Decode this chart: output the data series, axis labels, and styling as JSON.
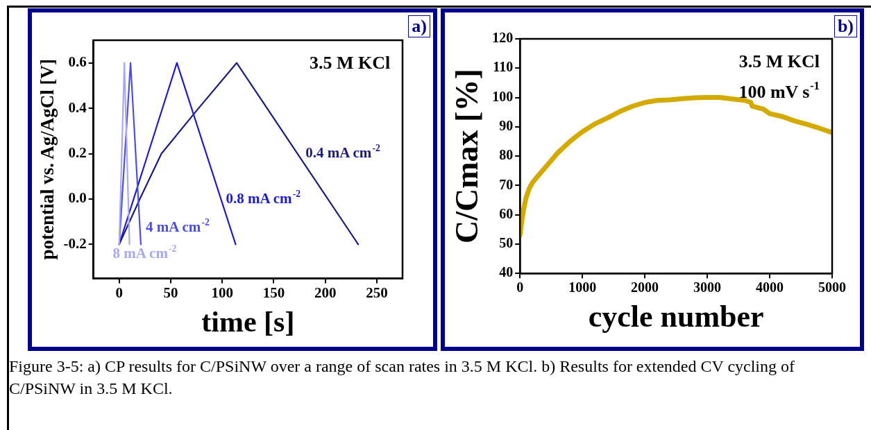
{
  "chart_data": [
    {
      "type": "line",
      "xlabel": "time [s]",
      "ylabel": "potential vs. Ag/AgCl [V]",
      "xlim": [
        -25,
        275
      ],
      "xticks": [
        0,
        50,
        100,
        150,
        200,
        250
      ],
      "ylim": [
        -0.35,
        0.7
      ],
      "yticks": [
        -0.2,
        {
          "value": 0,
          "label": "0.0"
        },
        0.2,
        0.4,
        0.6
      ],
      "grid": false,
      "legend": false,
      "marker": "none",
      "line_style": "solid",
      "annotations": [
        "a)",
        "3.5 M KCl",
        "Figure 3-5: a) CP results for C/PSiNW over a range of scan rates in 3.5 M KCl. b) Results for extended CV cycling of C/PSiNW in 3.5 M KCl."
      ],
      "series": [
        {
          "name": "8 mA cm$^{-2}$",
          "color": "#a8a8f0",
          "x": [
            0,
            5,
            10
          ],
          "values": [
            -0.2,
            0.6,
            -0.2
          ]
        },
        {
          "name": "4 mA cm$^{-2}$",
          "color": "#4c4ce6",
          "x": [
            0,
            11,
            21
          ],
          "values": [
            -0.2,
            0.6,
            -0.2
          ]
        },
        {
          "name": "0.8 mA cm$^{-2}$",
          "color": "#1c1ccc",
          "x": [
            0,
            28,
            56,
            113
          ],
          "values": [
            -0.2,
            0.2,
            0.6,
            -0.2
          ]
        },
        {
          "name": "0.4 mA cm$^{-2}$",
          "color": "#1a1a80",
          "x": [
            0,
            20,
            41,
            77,
            114,
            232
          ],
          "values": [
            -0.2,
            0.0,
            0.2,
            0.4,
            0.6,
            -0.2
          ]
        }
      ]
    },
    {
      "type": "line",
      "xlabel": "cycle number",
      "ylabel": "C/Cmax [%]",
      "xlim": [
        0,
        5000
      ],
      "xticks": [
        0,
        1000,
        2000,
        3000,
        4000,
        5000
      ],
      "ylim": [
        40,
        120
      ],
      "yticks": [
        40,
        50,
        60,
        70,
        80,
        90,
        100,
        110,
        120
      ],
      "grid": false,
      "legend": false,
      "marker": "none",
      "line_style": "solid",
      "annotations": [
        "b)",
        "3.5 M KCl",
        "100 mV s$^{-1}$"
      ],
      "series": [
        {
          "color": "#d4aa00",
          "x": [
            0,
            30,
            60,
            100,
            150,
            200,
            300,
            400,
            500,
            600,
            700,
            800,
            900,
            1000,
            1200,
            1400,
            1600,
            1800,
            2000,
            2200,
            2400,
            2600,
            2800,
            3000,
            3200,
            3400,
            3600,
            3700,
            3720,
            3900,
            4000,
            4200,
            4400,
            4600,
            4800,
            5000
          ],
          "values": [
            53,
            58,
            62,
            66,
            69,
            71,
            73.5,
            76,
            78.5,
            81,
            83,
            85,
            86.7,
            88.3,
            91,
            93,
            95.2,
            97,
            98.3,
            99,
            99.2,
            99.6,
            99.9,
            100,
            100,
            99.5,
            99,
            98.3,
            97,
            96,
            94.5,
            93.5,
            92,
            90.8,
            89.5,
            88
          ]
        }
      ]
    }
  ]
}
